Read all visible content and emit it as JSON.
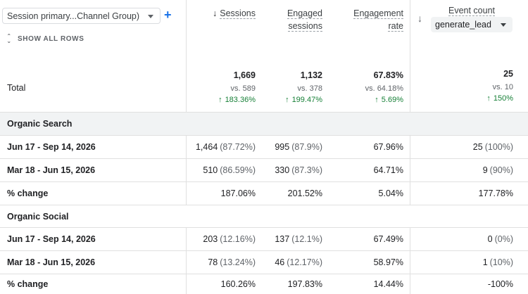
{
  "header": {
    "dimension_select": "Session primary...Channel Group)",
    "show_all_rows": "SHOW ALL ROWS",
    "columns": {
      "sessions": "Sessions",
      "engaged_line1": "Engaged",
      "engaged_line2": "sessions",
      "rate_line1": "Engagement",
      "rate_line2": "rate",
      "event_count": "Event count",
      "event_select": "generate_lead"
    }
  },
  "totals": {
    "label": "Total",
    "sessions": {
      "value": "1,669",
      "vs": "vs. 589",
      "change": "183.36%"
    },
    "engaged": {
      "value": "1,132",
      "vs": "vs. 378",
      "change": "199.47%"
    },
    "rate": {
      "value": "67.83%",
      "vs": "vs. 64.18%",
      "change": "5.69%"
    },
    "events": {
      "value": "25",
      "vs": "vs. 10",
      "change": "150%"
    }
  },
  "rows": [
    {
      "type": "section",
      "label": "Organic Search"
    },
    {
      "type": "data",
      "label": "Jun 17 - Sep 14, 2026",
      "sessions": "1,464",
      "sessions_pct": "(87.72%)",
      "engaged": "995",
      "engaged_pct": "(87.9%)",
      "rate": "67.96%",
      "events": "25",
      "events_pct": "(100%)"
    },
    {
      "type": "data",
      "label": "Mar 18 - Jun 15, 2026",
      "sessions": "510",
      "sessions_pct": "(86.59%)",
      "engaged": "330",
      "engaged_pct": "(87.3%)",
      "rate": "64.71%",
      "events": "9",
      "events_pct": "(90%)"
    },
    {
      "type": "data",
      "label": "% change",
      "sessions": "187.06%",
      "sessions_pct": "",
      "engaged": "201.52%",
      "engaged_pct": "",
      "rate": "5.04%",
      "events": "177.78%",
      "events_pct": ""
    },
    {
      "type": "section",
      "label": "Organic Social"
    },
    {
      "type": "data",
      "label": "Jun 17 - Sep 14, 2026",
      "sessions": "203",
      "sessions_pct": "(12.16%)",
      "engaged": "137",
      "engaged_pct": "(12.1%)",
      "rate": "67.49%",
      "events": "0",
      "events_pct": "(0%)"
    },
    {
      "type": "data",
      "label": "Mar 18 - Jun 15, 2026",
      "sessions": "78",
      "sessions_pct": "(13.24%)",
      "engaged": "46",
      "engaged_pct": "(12.17%)",
      "rate": "58.97%",
      "events": "1",
      "events_pct": "(10%)"
    },
    {
      "type": "data",
      "label": "% change",
      "sessions": "160.26%",
      "sessions_pct": "",
      "engaged": "197.83%",
      "engaged_pct": "",
      "rate": "14.44%",
      "events": "-100%",
      "events_pct": ""
    }
  ],
  "colors": {
    "accent": "#1a73e8",
    "positive": "#188038",
    "section_bg": "#f1f3f4"
  }
}
